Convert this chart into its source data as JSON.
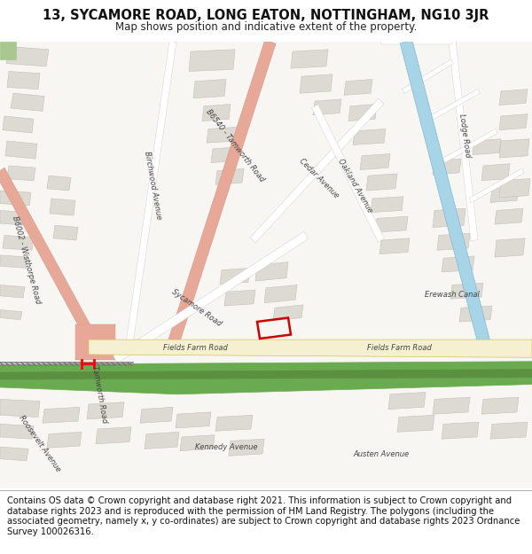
{
  "title_line1": "13, SYCAMORE ROAD, LONG EATON, NOTTINGHAM, NG10 3JR",
  "title_line2": "Map shows position and indicative extent of the property.",
  "title_fontsize": 10.5,
  "subtitle_fontsize": 8.5,
  "footer_text": "Contains OS data © Crown copyright and database right 2021. This information is subject to Crown copyright and database rights 2023 and is reproduced with the permission of HM Land Registry. The polygons (including the associated geometry, namely x, y co-ordinates) are subject to Crown copyright and database rights 2023 Ordnance Survey 100026316.",
  "footer_fontsize": 7.2,
  "map_bg": "#f7f5f2",
  "road_salmon": "#e8a898",
  "road_yellow_fill": "#f5f0d0",
  "road_yellow_edge": "#d4c060",
  "canal_color": "#a8d4e8",
  "canal_edge": "#80b8d0",
  "green_dark": "#5a9040",
  "green_mid": "#6aaa50",
  "building_color": "#dddad4",
  "building_edge": "#c4c0b8",
  "property_color": "#cc0000",
  "text_color": "#444444",
  "fig_width": 6.0,
  "fig_height": 6.25
}
